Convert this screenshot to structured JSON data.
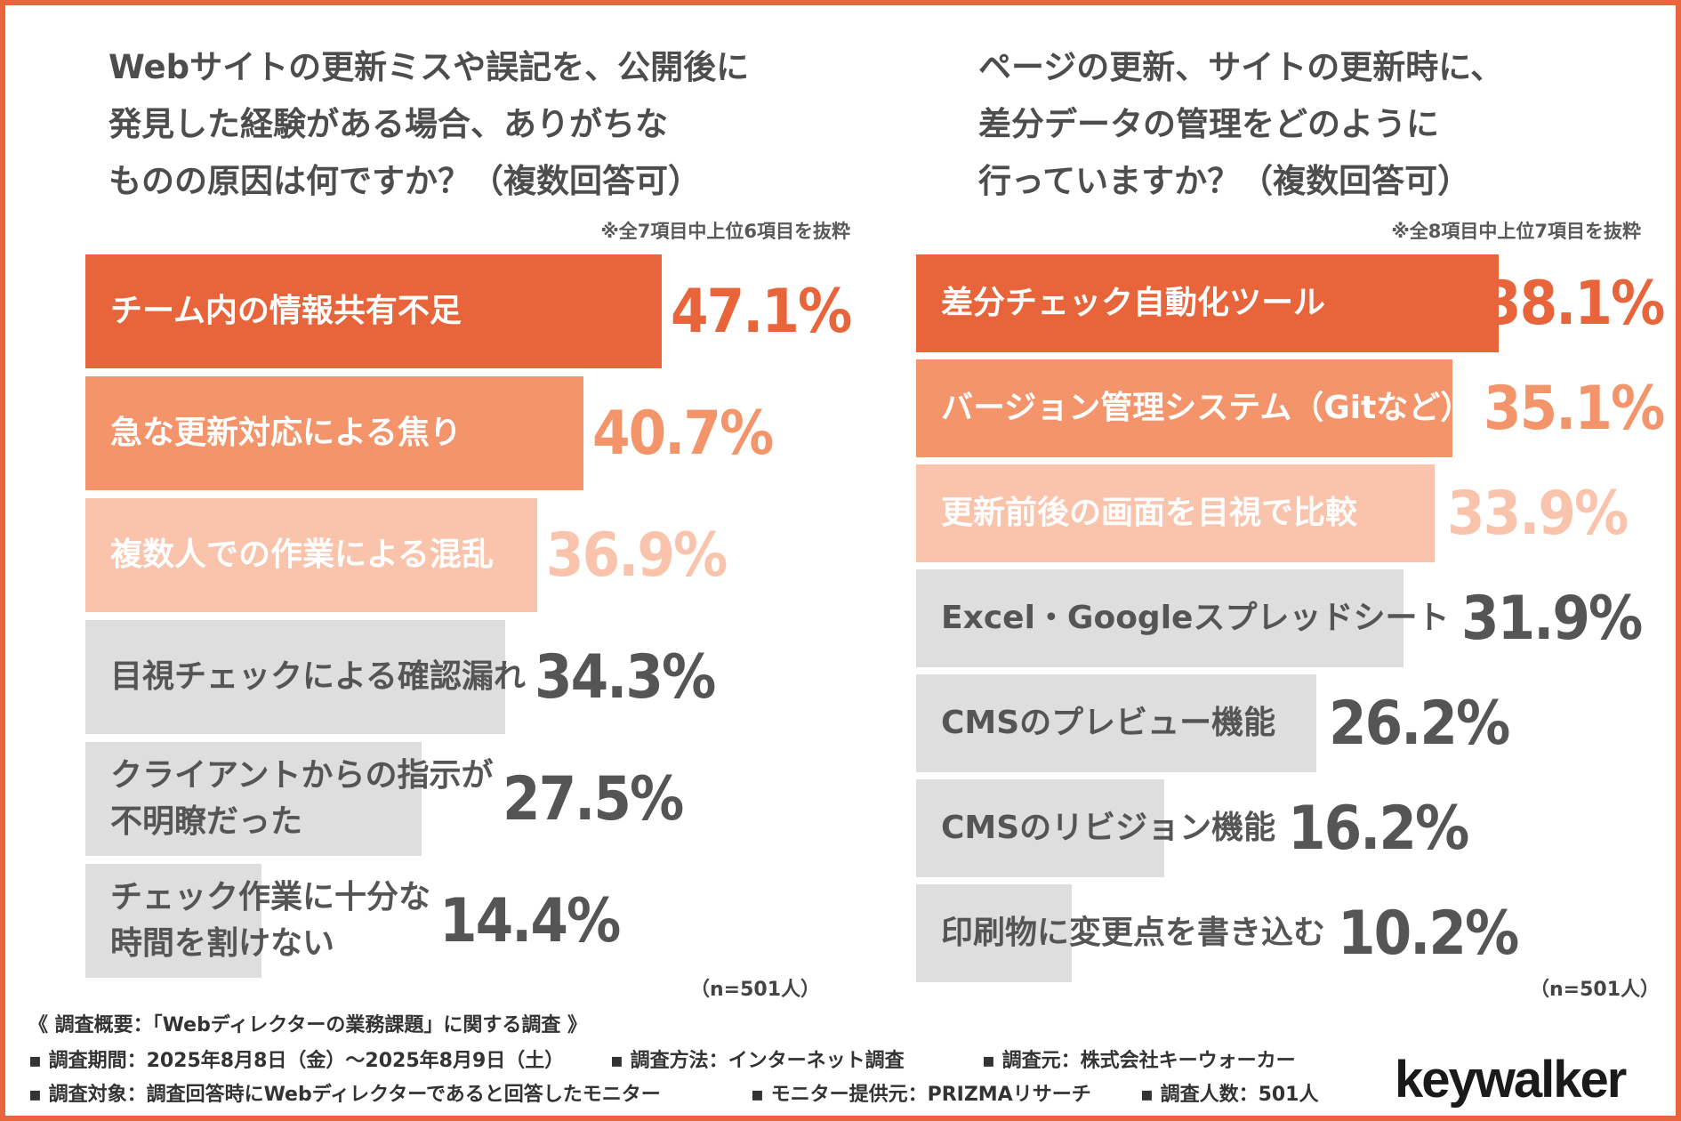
{
  "chart_data": [
    {
      "type": "bar",
      "orientation": "horizontal",
      "title": "Webサイトの更新ミスや誤記を、公開後に\n発見した経験がある場合、ありがちな\nものの原因は何ですか？（複数回答可）",
      "note": "※全7項目中上位6項目を抜粋",
      "categories": [
        "チーム内の情報共有不足",
        "急な更新対応による焦り",
        "複数人での作業による混乱",
        "目視チェックによる確認漏れ",
        "クライアントからの指示が\n不明瞭だった",
        "チェック作業に十分な\n時間を割けない"
      ],
      "values": [
        47.1,
        40.7,
        36.9,
        34.3,
        27.5,
        14.4
      ],
      "value_labels": [
        "47.1%",
        "40.7%",
        "36.9%",
        "34.3%",
        "27.5%",
        "14.4%"
      ],
      "unit": "%",
      "sample": "（n=501人）",
      "colors": [
        "#e8643a",
        "#f4946b",
        "#f9c3ac",
        "#dedede",
        "#dedede",
        "#dedede"
      ],
      "value_colors": [
        "#e8643a",
        "#f4946b",
        "#f9c3ac",
        "#555555",
        "#555555",
        "#555555"
      ],
      "label_colors": [
        "#ffffff",
        "#ffffff",
        "#ffffff",
        "#555555",
        "#555555",
        "#555555"
      ]
    },
    {
      "type": "bar",
      "orientation": "horizontal",
      "title": "ページの更新、サイトの更新時に、\n差分データの管理をどのように\n行っていますか？（複数回答可）",
      "note": "※全8項目中上位7項目を抜粋",
      "categories": [
        "差分チェック自動化ツール",
        "バージョン管理システム（Gitなど）",
        "更新前後の画面を目視で比較",
        "Excel・Googleスプレッドシート",
        "CMSのプレビュー機能",
        "CMSのリビジョン機能",
        "印刷物に変更点を書き込む"
      ],
      "values": [
        38.1,
        35.1,
        33.9,
        31.9,
        26.2,
        16.2,
        10.2
      ],
      "value_labels": [
        "38.1%",
        "35.1%",
        "33.9%",
        "31.9%",
        "26.2%",
        "16.2%",
        "10.2%"
      ],
      "unit": "%",
      "sample": "（n=501人）",
      "colors": [
        "#e8643a",
        "#f4946b",
        "#f9c3ac",
        "#dedede",
        "#dedede",
        "#dedede",
        "#dedede"
      ],
      "value_colors": [
        "#e8643a",
        "#f4946b",
        "#f9c3ac",
        "#555555",
        "#555555",
        "#555555",
        "#555555"
      ],
      "label_colors": [
        "#ffffff",
        "#ffffff",
        "#ffffff",
        "#555555",
        "#555555",
        "#555555",
        "#555555"
      ]
    }
  ],
  "footer": {
    "heading": "《 調査概要：「Webディレクターの業務課題」に関する調査 》",
    "period": "▪ 調査期間：2025年8月8日（金）〜2025年8月9日（土）",
    "method": "▪ 調査方法：インターネット調査",
    "source": "▪ 調査元：株式会社キーウォーカー",
    "target": "▪ 調査対象：調査回答時にWebディレクターであると回答したモニター",
    "provider": "▪ モニター提供元：PRIZMAリサーチ",
    "count": "▪ 調査人数：501人"
  },
  "logo": "keywalker",
  "accent_color": "#e8643a"
}
